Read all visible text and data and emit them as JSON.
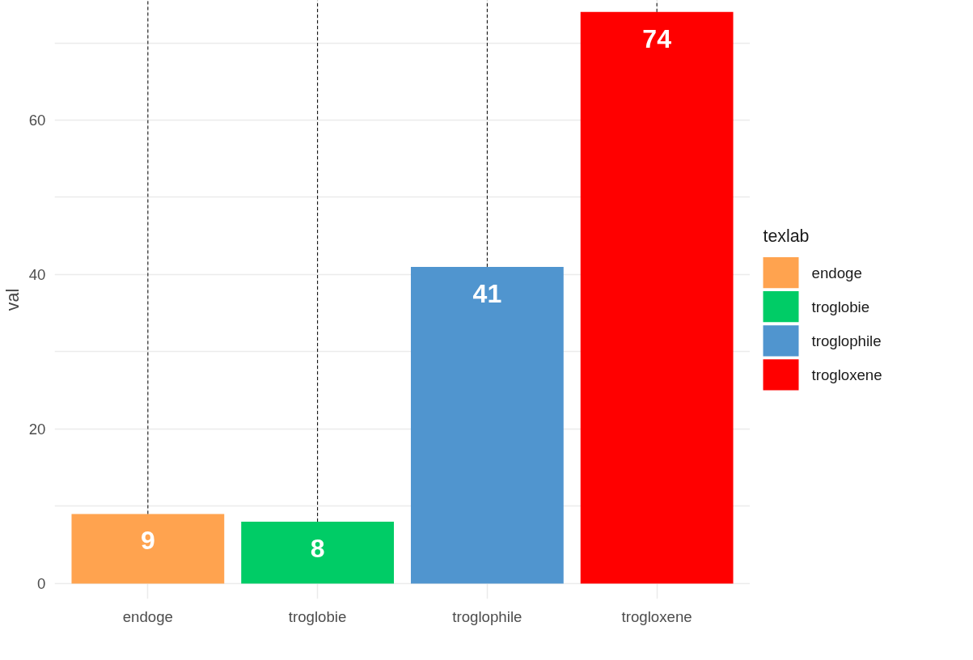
{
  "chart_data": {
    "type": "bar",
    "ylabel": "val",
    "legend_title": "texlab",
    "categories": [
      "endoge",
      "troglobie",
      "troglophile",
      "trogloxene"
    ],
    "series": [
      {
        "name": "endoge",
        "color": "#ffa34f",
        "values": [
          9,
          null,
          null,
          null
        ]
      },
      {
        "name": "troglobie",
        "color": "#00cc66",
        "values": [
          null,
          8,
          null,
          null
        ]
      },
      {
        "name": "troglophile",
        "color": "#5095cf",
        "values": [
          null,
          null,
          41,
          null
        ]
      },
      {
        "name": "trogloxene",
        "color": "#ff0000",
        "values": [
          null,
          null,
          null,
          74
        ]
      }
    ],
    "ylim": [
      -2,
      75.5
    ],
    "yticks": [
      0,
      {
        "value": 10,
        "label": null
      },
      20,
      {
        "value": 30,
        "label": null
      },
      40,
      {
        "value": 50,
        "label": null
      },
      60,
      {
        "value": 70,
        "label": null
      }
    ],
    "grid": true,
    "legend": "right",
    "data_labels": true
  }
}
